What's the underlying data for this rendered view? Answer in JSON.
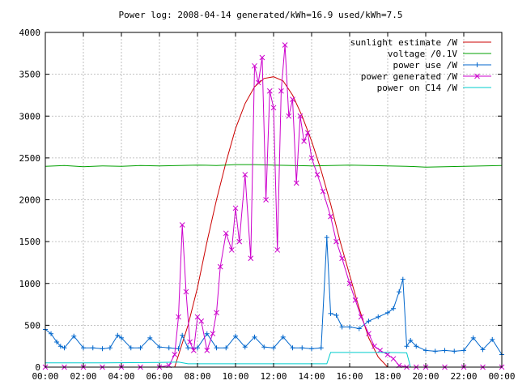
{
  "chart_data": {
    "type": "line",
    "title": "Power log: 2008-04-14 generated/kWh=16.9 used/kWh=7.5",
    "xlabel": "",
    "ylabel": "",
    "xlim": [
      0,
      24
    ],
    "ylim": [
      0,
      4000
    ],
    "grid": true,
    "legend": "top-right",
    "x_tick_labels": [
      "00:00",
      "02:00",
      "04:00",
      "06:00",
      "08:00",
      "10:00",
      "12:00",
      "14:00",
      "16:00",
      "18:00",
      "20:00",
      "22:00",
      "00:00"
    ],
    "x_tick_values": [
      0,
      2,
      4,
      6,
      8,
      10,
      12,
      14,
      16,
      18,
      20,
      22,
      24
    ],
    "y_tick_values": [
      0,
      500,
      1000,
      1500,
      2000,
      2500,
      3000,
      3500,
      4000
    ],
    "y_tick_labels": [
      "0",
      "500",
      "1000",
      "1500",
      "2000",
      "2500",
      "3000",
      "3500",
      "4000"
    ],
    "series": [
      {
        "name": "sunlight estimate /W",
        "color": "#cc0000",
        "marker": "none",
        "x": [
          6.8,
          7.5,
          8,
          8.5,
          9,
          9.5,
          10,
          10.5,
          11,
          11.5,
          12,
          12.5,
          13,
          13.5,
          14,
          14.5,
          15,
          15.5,
          16,
          16.5,
          17,
          17.5,
          18
        ],
        "y": [
          0,
          500,
          950,
          1500,
          2000,
          2450,
          2850,
          3150,
          3350,
          3450,
          3470,
          3420,
          3250,
          3000,
          2700,
          2350,
          1950,
          1500,
          1100,
          700,
          350,
          120,
          0
        ]
      },
      {
        "name": "voltage /0.1V",
        "color": "#00a000",
        "marker": "none",
        "x": [
          0,
          1,
          2,
          3,
          4,
          5,
          6,
          7,
          8,
          9,
          10,
          11,
          12,
          13,
          14,
          15,
          16,
          17,
          18,
          19,
          20,
          21,
          22,
          23,
          24
        ],
        "y": [
          2400,
          2410,
          2395,
          2405,
          2400,
          2410,
          2405,
          2410,
          2415,
          2410,
          2420,
          2420,
          2415,
          2410,
          2405,
          2410,
          2415,
          2410,
          2405,
          2400,
          2390,
          2395,
          2400,
          2405,
          2410
        ]
      },
      {
        "name": "power use /W",
        "color": "#0066cc",
        "marker": "plus",
        "x": [
          0,
          0.3,
          0.6,
          0.8,
          1,
          1.5,
          2,
          2.5,
          3,
          3.4,
          3.8,
          4,
          4.5,
          5,
          5.5,
          6,
          6.5,
          7,
          7.2,
          7.5,
          8,
          8.5,
          9,
          9.5,
          10,
          10.5,
          11,
          11.5,
          12,
          12.5,
          13,
          13.5,
          14,
          14.5,
          14.8,
          15,
          15.3,
          15.6,
          16,
          16.5,
          17,
          17.5,
          18,
          18.3,
          18.6,
          18.8,
          19,
          19.2,
          19.5,
          20,
          20.5,
          21,
          21.5,
          22,
          22.5,
          23,
          23.5,
          24
        ],
        "y": [
          450,
          400,
          300,
          250,
          230,
          370,
          230,
          230,
          220,
          230,
          380,
          350,
          230,
          230,
          350,
          240,
          230,
          220,
          380,
          230,
          230,
          400,
          230,
          230,
          370,
          240,
          360,
          240,
          230,
          360,
          230,
          230,
          220,
          230,
          1550,
          640,
          620,
          480,
          480,
          460,
          550,
          600,
          650,
          700,
          900,
          1050,
          250,
          320,
          250,
          200,
          190,
          200,
          190,
          200,
          350,
          210,
          330,
          150
        ]
      },
      {
        "name": "power generated /W",
        "color": "#cc00cc",
        "marker": "x",
        "x": [
          0,
          1,
          2,
          3,
          4,
          5,
          6,
          6.5,
          6.8,
          7,
          7.2,
          7.4,
          7.6,
          7.8,
          8,
          8.2,
          8.5,
          8.8,
          9,
          9.2,
          9.5,
          9.8,
          10,
          10.2,
          10.5,
          10.8,
          11,
          11.2,
          11.4,
          11.6,
          11.8,
          12,
          12.2,
          12.4,
          12.6,
          12.8,
          13,
          13.2,
          13.4,
          13.6,
          13.8,
          14,
          14.3,
          14.6,
          15,
          15.3,
          15.6,
          16,
          16.3,
          16.6,
          17,
          17.3,
          17.6,
          18,
          18.3,
          18.6,
          19,
          19.5,
          20,
          21,
          22,
          23,
          24
        ],
        "y": [
          0,
          0,
          0,
          0,
          0,
          0,
          0,
          20,
          150,
          600,
          1700,
          900,
          300,
          200,
          600,
          550,
          200,
          400,
          650,
          1200,
          1600,
          1400,
          1900,
          1500,
          2300,
          1300,
          3600,
          3400,
          3700,
          2000,
          3300,
          3100,
          1400,
          3300,
          3850,
          3000,
          3200,
          2200,
          3000,
          2700,
          2800,
          2500,
          2300,
          2100,
          1800,
          1500,
          1300,
          1000,
          800,
          600,
          400,
          250,
          200,
          150,
          100,
          20,
          0,
          0,
          0,
          0,
          0,
          0,
          0
        ]
      },
      {
        "name": "power on C14 /W",
        "color": "#00cccc",
        "marker": "none",
        "x": [
          0,
          3,
          6,
          7,
          7.5,
          8,
          10,
          12,
          14,
          14.8,
          15,
          16,
          18,
          19,
          19.2,
          20,
          22,
          24
        ],
        "y": [
          50,
          50,
          55,
          60,
          40,
          40,
          40,
          40,
          40,
          40,
          175,
          175,
          175,
          170,
          0,
          0,
          0,
          0
        ]
      }
    ]
  }
}
